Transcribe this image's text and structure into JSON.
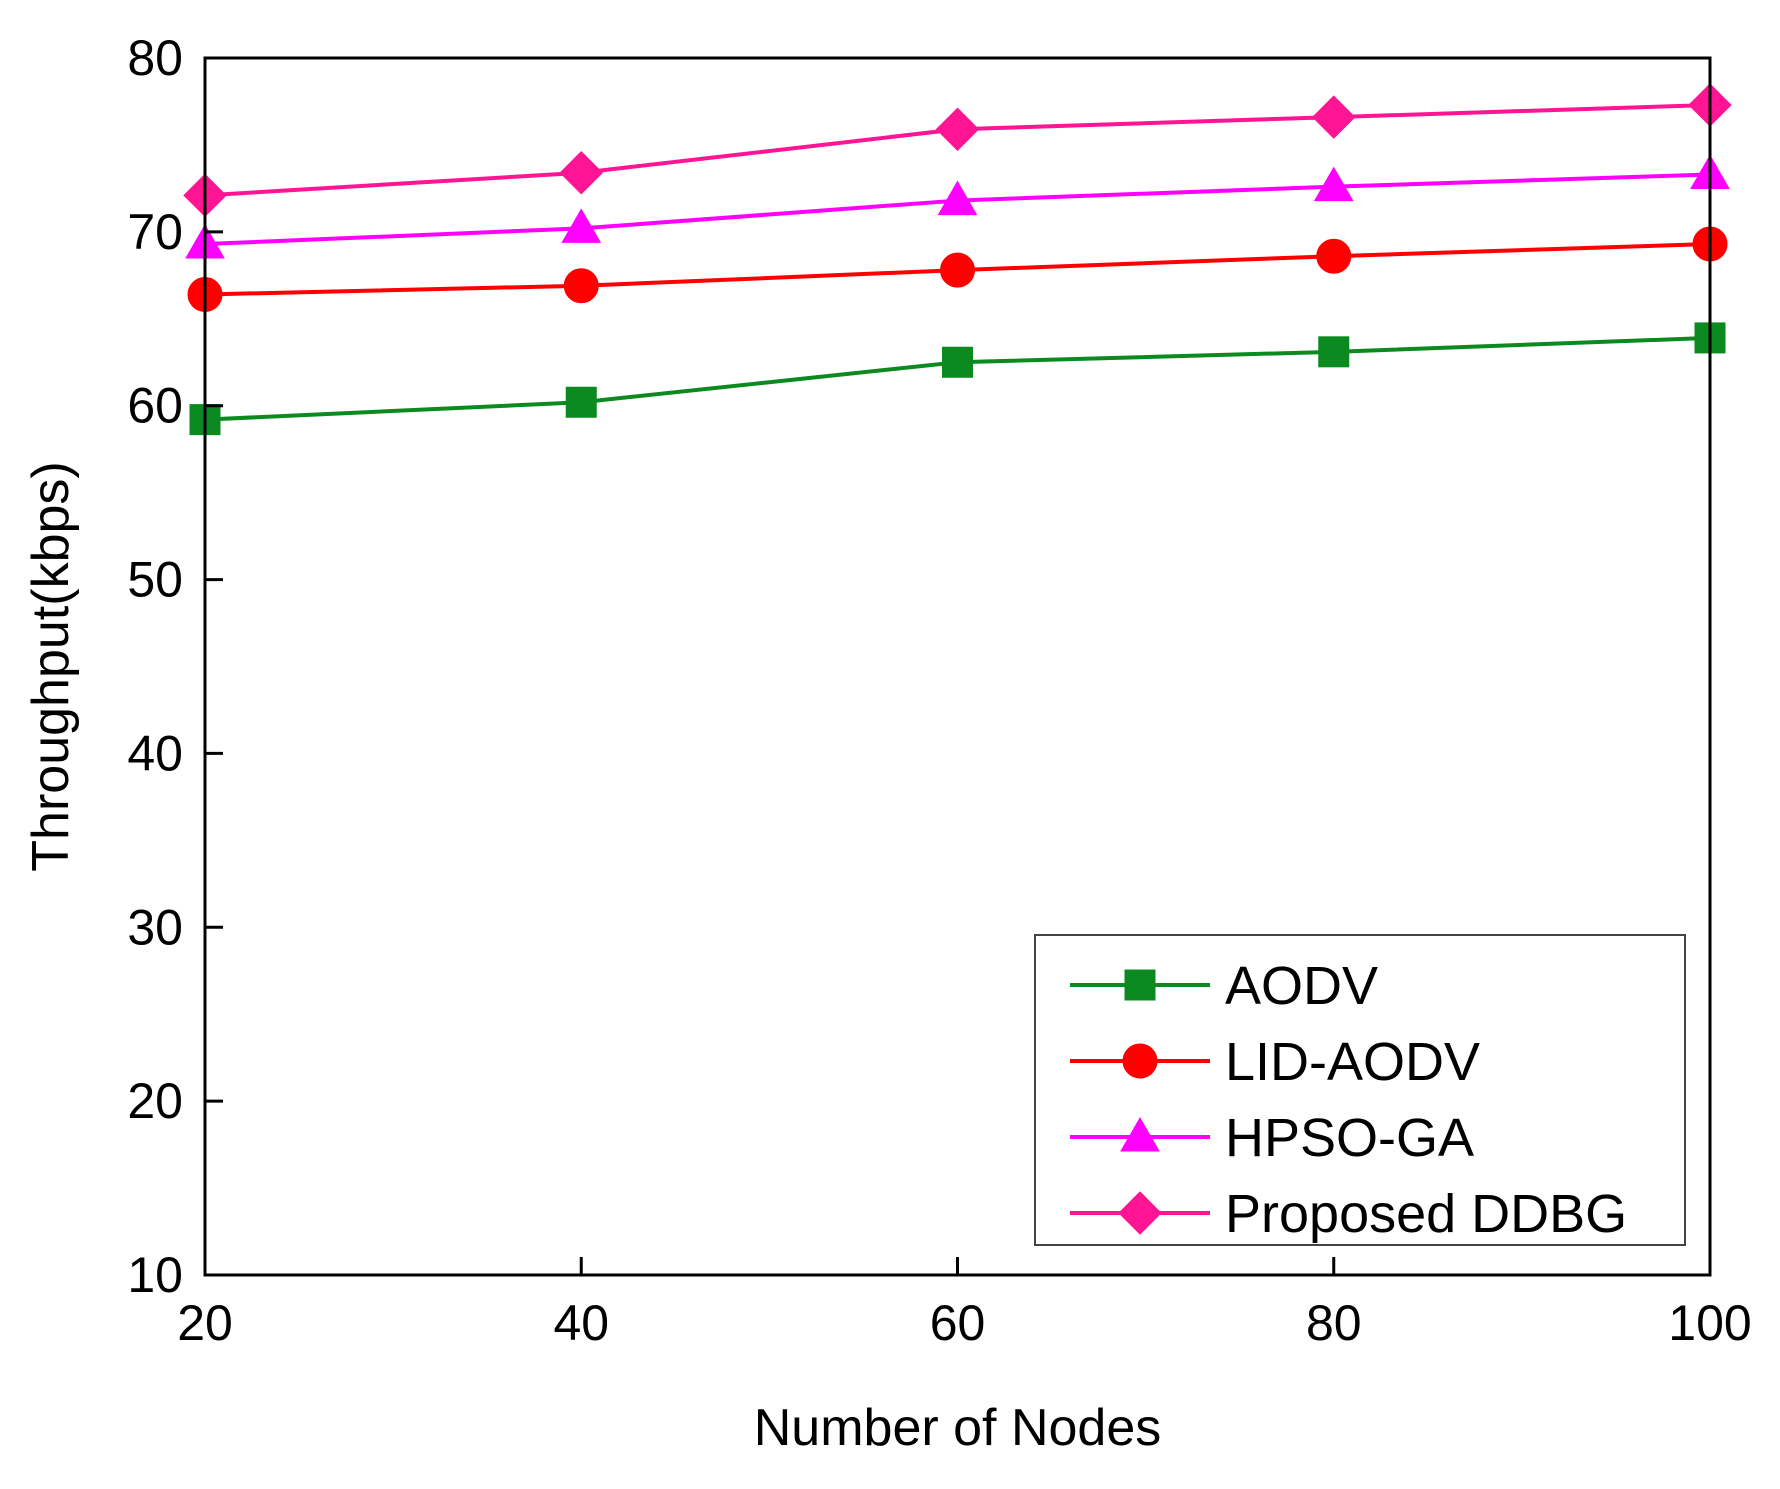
{
  "chart_data": {
    "type": "line",
    "title": "",
    "xlabel": "Number of Nodes",
    "ylabel": "Throughput(kbps)",
    "x": [
      20,
      40,
      60,
      80,
      100
    ],
    "xlim": [
      20,
      100
    ],
    "ylim": [
      10,
      80
    ],
    "xticks": [
      20,
      40,
      60,
      80,
      100
    ],
    "yticks": [
      10,
      20,
      30,
      40,
      50,
      60,
      70,
      80
    ],
    "grid": false,
    "legend_position": "bottom-right",
    "series": [
      {
        "name": "AODV",
        "color": "#0a8a1f",
        "marker": "square",
        "values": [
          59.2,
          60.2,
          62.5,
          63.1,
          63.9
        ]
      },
      {
        "name": "LID-AODV",
        "color": "#ff0000",
        "marker": "circle",
        "values": [
          66.4,
          66.9,
          67.8,
          68.6,
          69.3
        ]
      },
      {
        "name": "HPSO-GA",
        "color": "#ff00ff",
        "marker": "triangle",
        "values": [
          69.3,
          70.2,
          71.8,
          72.6,
          73.3
        ]
      },
      {
        "name": "Proposed DDBG",
        "color": "#ff1493",
        "marker": "diamond",
        "values": [
          72.1,
          73.4,
          75.9,
          76.6,
          77.3
        ]
      }
    ]
  }
}
